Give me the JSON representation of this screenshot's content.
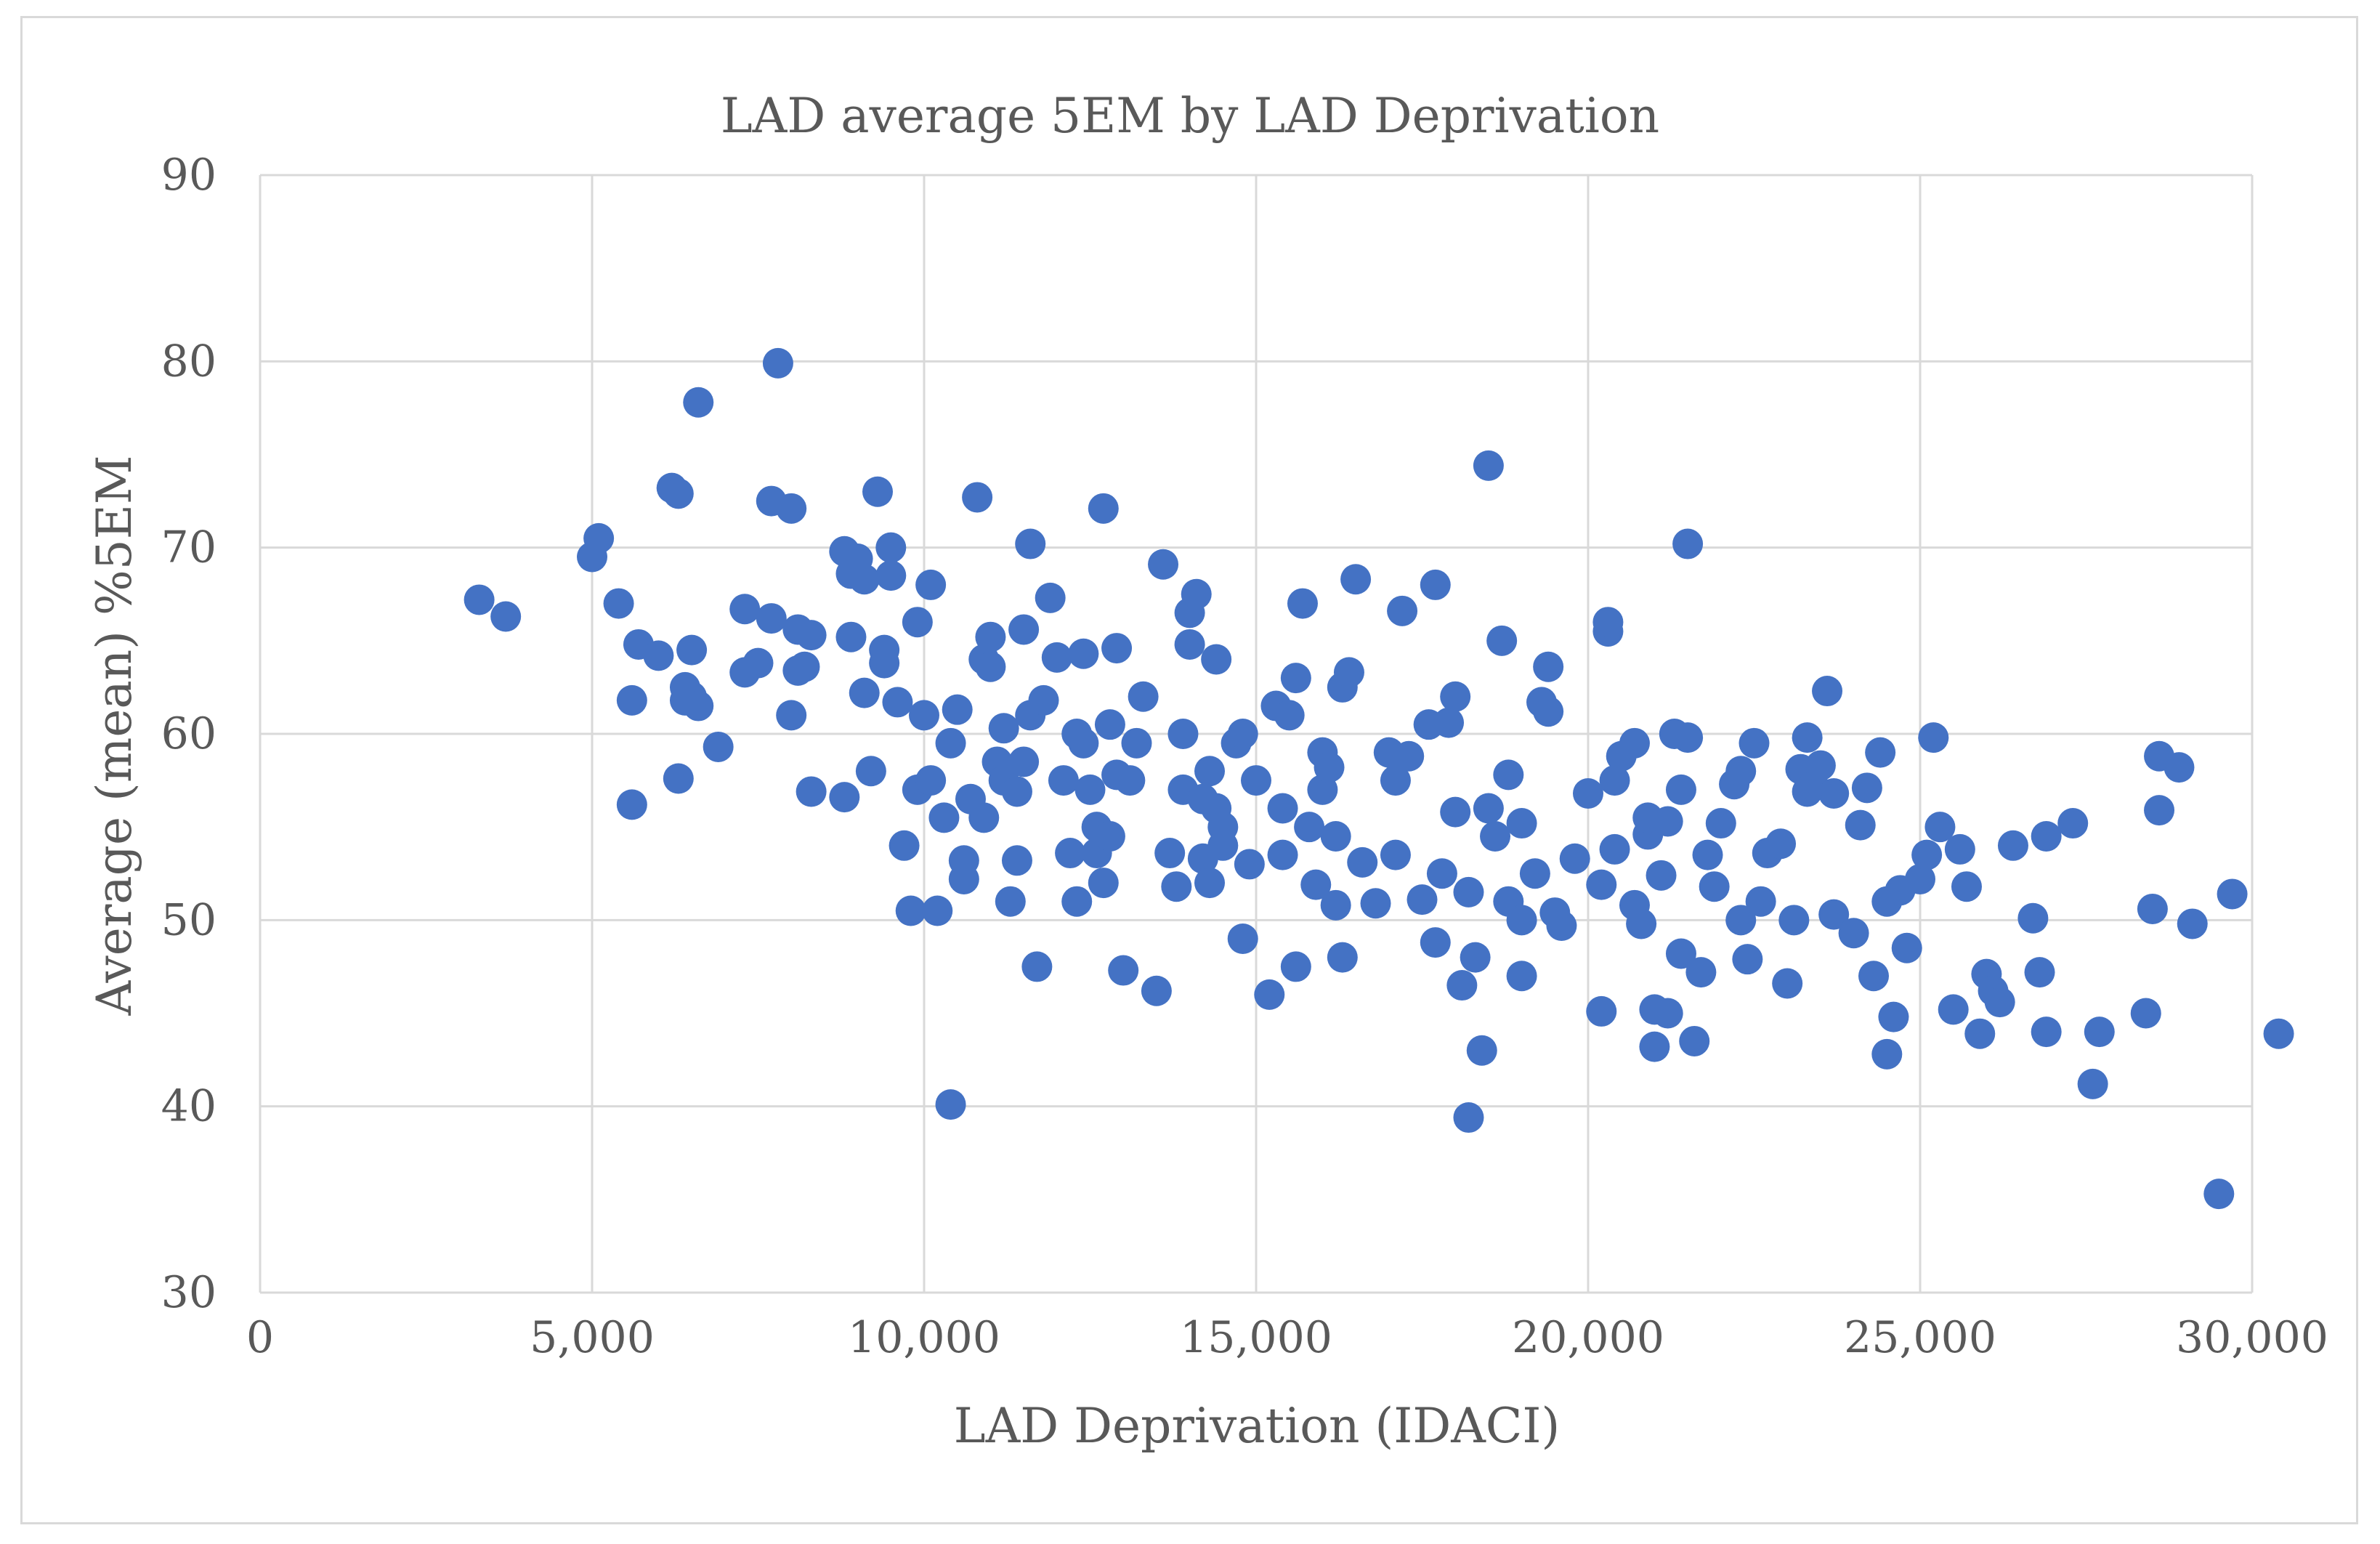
{
  "chart_data": {
    "type": "scatter",
    "title": "LAD average 5EM by LAD Deprivation",
    "xlabel": "LAD Deprivation (IDACI)",
    "ylabel": "Average (mean) %5EM",
    "xlim": [
      0,
      30000
    ],
    "ylim": [
      30,
      90
    ],
    "x_ticks": [
      0,
      5000,
      10000,
      15000,
      20000,
      25000,
      30000
    ],
    "x_tick_labels": [
      "0",
      "5,000",
      "10,000",
      "15,000",
      "20,000",
      "25,000",
      "30,000"
    ],
    "y_ticks": [
      30,
      40,
      50,
      60,
      70,
      80,
      90
    ],
    "y_tick_labels": [
      "30",
      "40",
      "50",
      "60",
      "70",
      "80",
      "90"
    ],
    "grid": true,
    "series": [
      {
        "name": "LAD",
        "color": "#4472c4",
        "points": [
          [
            3300,
            67.2
          ],
          [
            3700,
            66.3
          ],
          [
            5000,
            69.5
          ],
          [
            5100,
            70.5
          ],
          [
            5400,
            67.0
          ],
          [
            5600,
            56.2
          ],
          [
            5600,
            61.8
          ],
          [
            5700,
            64.8
          ],
          [
            6000,
            64.2
          ],
          [
            6200,
            73.2
          ],
          [
            6300,
            72.9
          ],
          [
            6300,
            57.6
          ],
          [
            6400,
            62.5
          ],
          [
            6400,
            61.8
          ],
          [
            6500,
            64.5
          ],
          [
            6500,
            62.0
          ],
          [
            6600,
            61.5
          ],
          [
            6600,
            77.8
          ],
          [
            6900,
            59.3
          ],
          [
            7300,
            66.7
          ],
          [
            7300,
            63.3
          ],
          [
            7500,
            63.8
          ],
          [
            7700,
            66.2
          ],
          [
            7700,
            72.5
          ],
          [
            7800,
            79.9
          ],
          [
            8000,
            61.0
          ],
          [
            8000,
            72.1
          ],
          [
            8100,
            63.4
          ],
          [
            8100,
            65.6
          ],
          [
            8200,
            63.6
          ],
          [
            8300,
            65.3
          ],
          [
            8300,
            56.9
          ],
          [
            8800,
            69.8
          ],
          [
            8800,
            56.6
          ],
          [
            8900,
            68.6
          ],
          [
            8900,
            65.2
          ],
          [
            9000,
            69.4
          ],
          [
            9100,
            68.3
          ],
          [
            9100,
            62.2
          ],
          [
            9200,
            58.0
          ],
          [
            9300,
            73.0
          ],
          [
            9400,
            64.5
          ],
          [
            9400,
            63.8
          ],
          [
            9500,
            70.0
          ],
          [
            9500,
            68.5
          ],
          [
            9600,
            61.7
          ],
          [
            9700,
            54.0
          ],
          [
            9800,
            50.5
          ],
          [
            9900,
            57.0
          ],
          [
            9900,
            66.0
          ],
          [
            10000,
            61.0
          ],
          [
            10100,
            68.0
          ],
          [
            10100,
            57.5
          ],
          [
            10200,
            50.5
          ],
          [
            10300,
            55.5
          ],
          [
            10400,
            59.5
          ],
          [
            10400,
            40.1
          ],
          [
            10500,
            61.3
          ],
          [
            10600,
            52.2
          ],
          [
            10600,
            53.2
          ],
          [
            10700,
            56.5
          ],
          [
            10800,
            72.7
          ],
          [
            10900,
            64.0
          ],
          [
            10900,
            55.5
          ],
          [
            11000,
            65.2
          ],
          [
            11000,
            63.6
          ],
          [
            11100,
            58.5
          ],
          [
            11200,
            60.3
          ],
          [
            11200,
            57.5
          ],
          [
            11300,
            51.0
          ],
          [
            11400,
            53.2
          ],
          [
            11400,
            56.9
          ],
          [
            11500,
            65.6
          ],
          [
            11500,
            58.5
          ],
          [
            11600,
            70.2
          ],
          [
            11600,
            61.0
          ],
          [
            11700,
            47.5
          ],
          [
            11800,
            61.8
          ],
          [
            11900,
            67.3
          ],
          [
            12000,
            64.1
          ],
          [
            12100,
            57.5
          ],
          [
            12200,
            53.6
          ],
          [
            12300,
            51.0
          ],
          [
            12300,
            60.0
          ],
          [
            12400,
            59.5
          ],
          [
            12400,
            64.3
          ],
          [
            12500,
            57.0
          ],
          [
            12600,
            55.0
          ],
          [
            12600,
            53.6
          ],
          [
            12700,
            52.0
          ],
          [
            12700,
            72.1
          ],
          [
            12800,
            60.5
          ],
          [
            12800,
            54.5
          ],
          [
            12900,
            64.6
          ],
          [
            12900,
            57.8
          ],
          [
            13000,
            47.3
          ],
          [
            13100,
            57.5
          ],
          [
            13200,
            59.5
          ],
          [
            13300,
            62.0
          ],
          [
            13500,
            46.2
          ],
          [
            13600,
            69.1
          ],
          [
            13700,
            53.6
          ],
          [
            13800,
            51.8
          ],
          [
            13900,
            57.0
          ],
          [
            13900,
            60.0
          ],
          [
            14000,
            64.8
          ],
          [
            14000,
            66.5
          ],
          [
            14100,
            67.5
          ],
          [
            14200,
            53.3
          ],
          [
            14200,
            56.5
          ],
          [
            14300,
            58.0
          ],
          [
            14300,
            52.0
          ],
          [
            14400,
            64.0
          ],
          [
            14400,
            56.0
          ],
          [
            14500,
            55.0
          ],
          [
            14500,
            54.0
          ],
          [
            14700,
            59.5
          ],
          [
            14800,
            60.0
          ],
          [
            14800,
            49.0
          ],
          [
            14900,
            53.0
          ],
          [
            15000,
            57.5
          ],
          [
            15200,
            46.0
          ],
          [
            15300,
            61.5
          ],
          [
            15400,
            53.5
          ],
          [
            15400,
            56.0
          ],
          [
            15500,
            61.0
          ],
          [
            15600,
            47.5
          ],
          [
            15600,
            63.0
          ],
          [
            15700,
            67.0
          ],
          [
            15800,
            55.0
          ],
          [
            15900,
            51.9
          ],
          [
            16000,
            57.0
          ],
          [
            16000,
            59.0
          ],
          [
            16100,
            58.2
          ],
          [
            16200,
            54.5
          ],
          [
            16200,
            50.8
          ],
          [
            16300,
            48.0
          ],
          [
            16300,
            62.5
          ],
          [
            16400,
            63.3
          ],
          [
            16500,
            68.3
          ],
          [
            16600,
            53.1
          ],
          [
            16800,
            50.9
          ],
          [
            17000,
            59.0
          ],
          [
            17100,
            53.5
          ],
          [
            17100,
            57.5
          ],
          [
            17200,
            66.6
          ],
          [
            17300,
            58.8
          ],
          [
            17500,
            51.1
          ],
          [
            17600,
            60.5
          ],
          [
            17700,
            68.0
          ],
          [
            17700,
            48.8
          ],
          [
            17800,
            52.5
          ],
          [
            17900,
            60.6
          ],
          [
            18000,
            55.8
          ],
          [
            18000,
            62.0
          ],
          [
            18100,
            46.5
          ],
          [
            18200,
            39.4
          ],
          [
            18200,
            51.5
          ],
          [
            18300,
            48.0
          ],
          [
            18400,
            43.0
          ],
          [
            18500,
            56.0
          ],
          [
            18500,
            74.4
          ],
          [
            18600,
            54.5
          ],
          [
            18700,
            65.0
          ],
          [
            18800,
            57.8
          ],
          [
            18800,
            51.0
          ],
          [
            19000,
            55.2
          ],
          [
            19000,
            47.0
          ],
          [
            19000,
            50.0
          ],
          [
            19200,
            52.5
          ],
          [
            19300,
            61.7
          ],
          [
            19400,
            61.2
          ],
          [
            19400,
            63.6
          ],
          [
            19500,
            50.4
          ],
          [
            19600,
            49.7
          ],
          [
            19800,
            53.3
          ],
          [
            20000,
            56.8
          ],
          [
            20200,
            45.1
          ],
          [
            20200,
            51.9
          ],
          [
            20300,
            65.5
          ],
          [
            20300,
            66.0
          ],
          [
            20400,
            53.8
          ],
          [
            20400,
            57.5
          ],
          [
            20500,
            58.8
          ],
          [
            20700,
            50.8
          ],
          [
            20700,
            59.5
          ],
          [
            20800,
            49.8
          ],
          [
            20900,
            54.6
          ],
          [
            20900,
            55.5
          ],
          [
            21000,
            45.2
          ],
          [
            21000,
            43.2
          ],
          [
            21100,
            52.4
          ],
          [
            21200,
            55.3
          ],
          [
            21200,
            45.0
          ],
          [
            21300,
            60.0
          ],
          [
            21400,
            57.0
          ],
          [
            21400,
            48.2
          ],
          [
            21500,
            59.8
          ],
          [
            21500,
            70.2
          ],
          [
            21600,
            43.5
          ],
          [
            21700,
            47.2
          ],
          [
            21800,
            53.5
          ],
          [
            21900,
            51.8
          ],
          [
            22000,
            55.2
          ],
          [
            22200,
            57.3
          ],
          [
            22300,
            50.0
          ],
          [
            22300,
            58.0
          ],
          [
            22400,
            47.9
          ],
          [
            22500,
            59.5
          ],
          [
            22600,
            51.0
          ],
          [
            22700,
            53.6
          ],
          [
            22900,
            54.1
          ],
          [
            23000,
            46.6
          ],
          [
            23100,
            50.0
          ],
          [
            23200,
            58.1
          ],
          [
            23300,
            56.9
          ],
          [
            23300,
            59.8
          ],
          [
            23400,
            57.2
          ],
          [
            23500,
            58.3
          ],
          [
            23600,
            62.3
          ],
          [
            23700,
            56.8
          ],
          [
            23700,
            50.3
          ],
          [
            24000,
            49.3
          ],
          [
            24100,
            55.1
          ],
          [
            24200,
            57.1
          ],
          [
            24300,
            47.0
          ],
          [
            24400,
            59.0
          ],
          [
            24500,
            42.8
          ],
          [
            24500,
            51.0
          ],
          [
            24600,
            44.8
          ],
          [
            24700,
            51.6
          ],
          [
            24800,
            48.5
          ],
          [
            25000,
            52.2
          ],
          [
            25100,
            53.5
          ],
          [
            25200,
            59.8
          ],
          [
            25300,
            55.0
          ],
          [
            25500,
            45.2
          ],
          [
            25600,
            53.8
          ],
          [
            25700,
            51.8
          ],
          [
            25900,
            43.9
          ],
          [
            26000,
            47.1
          ],
          [
            26100,
            46.2
          ],
          [
            26200,
            45.6
          ],
          [
            26400,
            54.0
          ],
          [
            26700,
            50.1
          ],
          [
            26800,
            47.2
          ],
          [
            26900,
            44.0
          ],
          [
            26900,
            54.5
          ],
          [
            27300,
            55.2
          ],
          [
            27600,
            41.2
          ],
          [
            27700,
            44.0
          ],
          [
            28400,
            45.0
          ],
          [
            28500,
            50.6
          ],
          [
            28600,
            58.8
          ],
          [
            28600,
            55.9
          ],
          [
            28900,
            58.2
          ],
          [
            29100,
            49.8
          ],
          [
            29500,
            35.3
          ],
          [
            29700,
            51.4
          ],
          [
            30400,
            43.9
          ]
        ]
      }
    ]
  }
}
